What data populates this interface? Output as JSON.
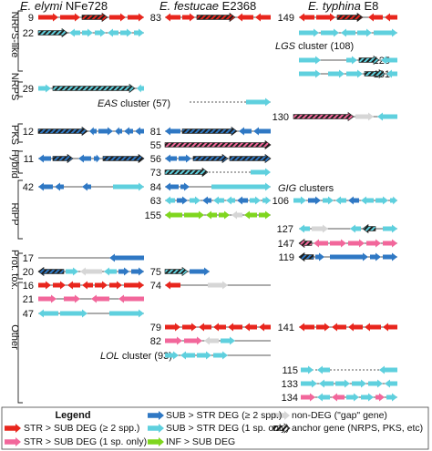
{
  "columns": [
    {
      "species": "E. elymi",
      "strain": "NFe728"
    },
    {
      "species": "E. festucae",
      "strain": "E2368"
    },
    {
      "species": "E. typhina",
      "strain": "E8"
    }
  ],
  "categories": [
    "NRPS-like",
    "NRPS",
    "PKS",
    "Hybrid",
    "RiPP",
    "Prot. tox.",
    "Other"
  ],
  "cluster_labels": {
    "lgs": "LGS cluster (108)",
    "eas": "EAS cluster (57)",
    "gig": "GIG clusters",
    "lol": "LOL cluster (93)"
  },
  "cluster_numbers": {
    "col1": [
      "9",
      "22",
      "29",
      "12",
      "11",
      "42",
      "17",
      "20",
      "16",
      "21",
      "47"
    ],
    "col2": [
      "83",
      "81",
      "55",
      "56",
      "73",
      "84",
      "63",
      "155",
      "75",
      "74",
      "79",
      "82"
    ],
    "col3": [
      "149",
      "125",
      "131",
      "130",
      "106",
      "127",
      "147",
      "119",
      "141",
      "115",
      "133",
      "134"
    ]
  },
  "legend": {
    "title": "Legend",
    "items": [
      {
        "key": "str_multi",
        "label": "STR > SUB DEG (≥ 2 spp.)",
        "color": "#e8261d"
      },
      {
        "key": "sub_multi",
        "label": "SUB > STR DEG (≥ 2 spp.)",
        "color": "#2f78c4"
      },
      {
        "key": "nondeg",
        "label": "non-DEG (\"gap\" gene)",
        "color": "#d6d6d6"
      },
      {
        "key": "str_single",
        "label": "STR > SUB DEG (1 sp. only)",
        "color": "#f2679b"
      },
      {
        "key": "sub_single",
        "label": "SUB > STR DEG (1 sp. only)",
        "color": "#5fd0de"
      },
      {
        "key": "inf",
        "label": "INF > SUB DEG",
        "color": "#7fd61e"
      },
      {
        "key": "anchor",
        "label": "anchor gene (NRPS, PKS, etc)",
        "color": "#1d1d1b"
      }
    ]
  },
  "colors": {
    "red": "#e8261d",
    "pink": "#f2679b",
    "blue": "#2f78c4",
    "cyan": "#5fd0de",
    "grey": "#d6d6d6",
    "green": "#7fd61e",
    "navy": "#1f4e79",
    "dark": "#1d1d1b"
  }
}
